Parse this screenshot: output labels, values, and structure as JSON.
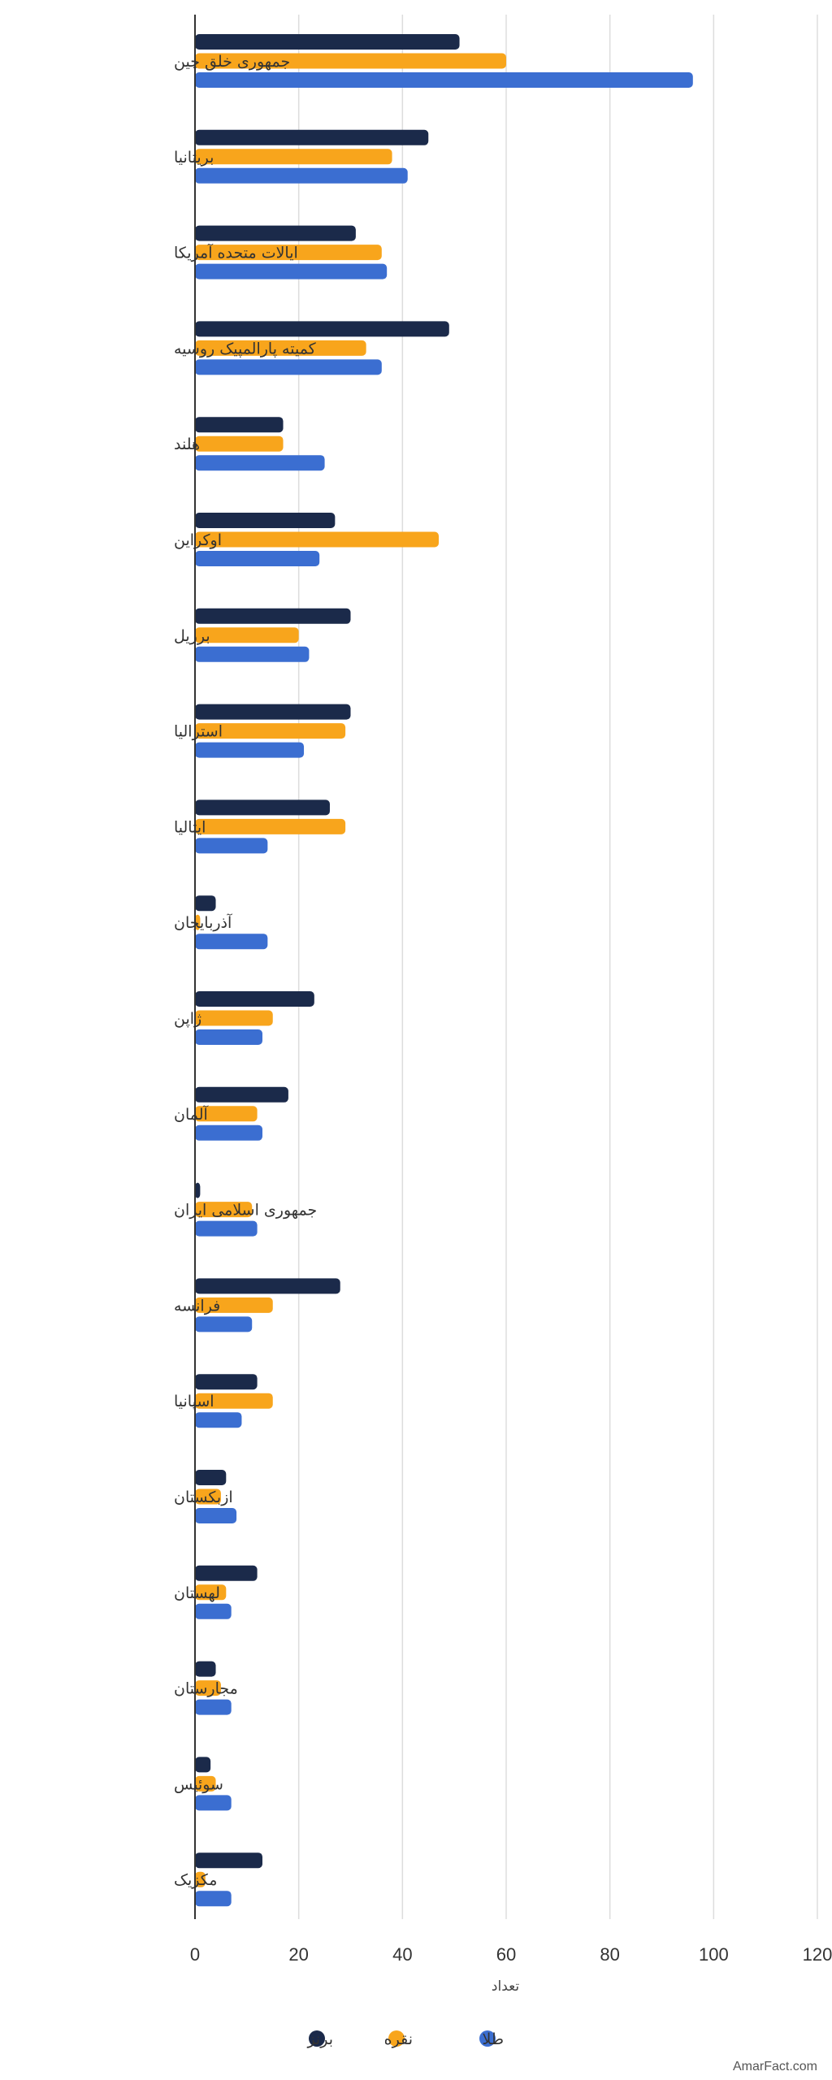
{
  "chart_data": {
    "type": "bar",
    "orientation": "horizontal",
    "categories": [
      "جمهوری خلق چین",
      "بریتانیا",
      "ایالات متحده آمریکا",
      "کمیته پارالمپیک روسیه",
      "هلند",
      "اوکراین",
      "برزیل",
      "استرالیا",
      "ایتالیا",
      "آذربایجان",
      "ژاپن",
      "آلمان",
      "جمهوری اسلامی ایران",
      "فرانسه",
      "اسپانیا",
      "ازبکستان",
      "لهستان",
      "مجارستان",
      "سوئیس",
      "مکزیک"
    ],
    "series": [
      {
        "name": "برنز",
        "color": "#1b2a4a",
        "values": [
          51,
          45,
          31,
          49,
          17,
          27,
          30,
          30,
          26,
          4,
          23,
          18,
          1,
          28,
          12,
          6,
          12,
          4,
          3,
          13
        ]
      },
      {
        "name": "نقره",
        "color": "#f8a51c",
        "values": [
          60,
          38,
          36,
          33,
          17,
          47,
          20,
          29,
          29,
          1,
          15,
          12,
          11,
          15,
          15,
          5,
          6,
          5,
          4,
          2
        ]
      },
      {
        "name": "طلا",
        "color": "#3b6ed1",
        "values": [
          96,
          41,
          37,
          36,
          25,
          24,
          22,
          21,
          14,
          14,
          13,
          13,
          12,
          11,
          9,
          8,
          7,
          7,
          7,
          7
        ]
      }
    ],
    "xlabel": "تعداد",
    "xlim": [
      0,
      120
    ],
    "xticks": [
      0,
      20,
      40,
      60,
      80,
      100,
      120
    ],
    "grid": true,
    "legend_position": "bottom-center"
  },
  "watermark": "AmarFact.com"
}
